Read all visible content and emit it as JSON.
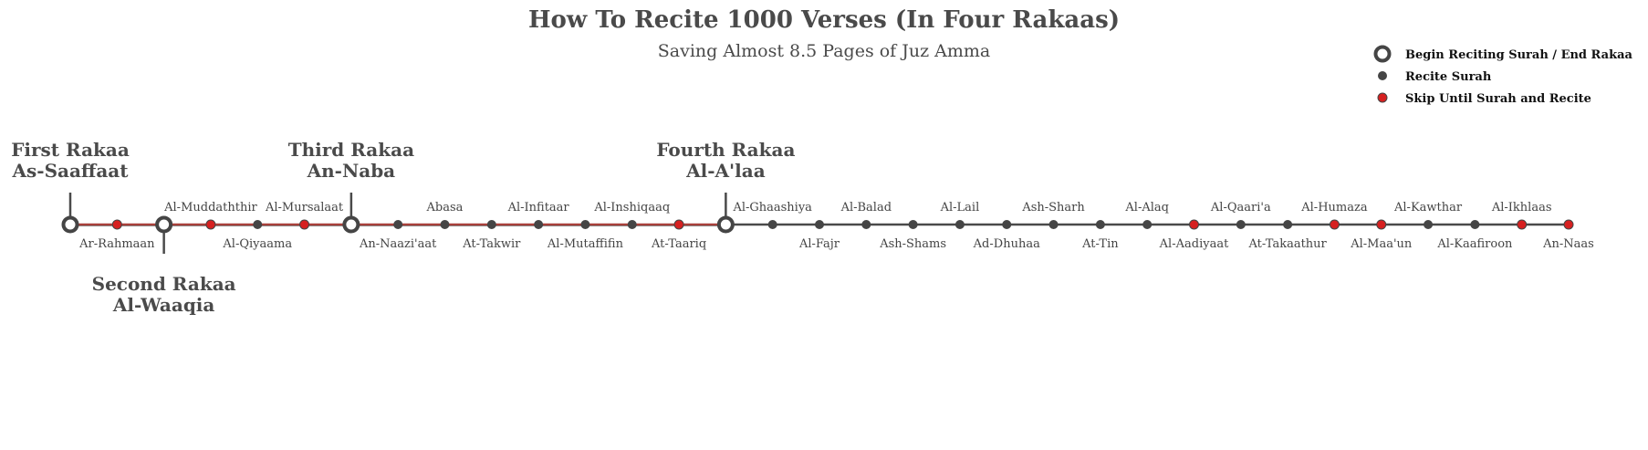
{
  "header": {
    "title": "How To Recite 1000 Verses (In Four Rakaas)",
    "subtitle": "Saving Almost 8.5 Pages of Juz Amma"
  },
  "legend": {
    "items": [
      {
        "type": "begin",
        "label": "Begin Reciting Surah / End Rakaa"
      },
      {
        "type": "recite",
        "label": "Recite Surah"
      },
      {
        "type": "skip",
        "label": "Skip Until Surah and Recite"
      }
    ]
  },
  "colors": {
    "dark": "#454545",
    "red": "#d62020",
    "line_red": "#a8403a",
    "line_gray": "#4a4a4a"
  },
  "rakaas": [
    {
      "index": 0,
      "line1": "First Rakaa",
      "line2": "As-Saaffaat",
      "side": "top"
    },
    {
      "index": 2,
      "line1": "Second Rakaa",
      "line2": "Al-Waaqia",
      "side": "bottom"
    },
    {
      "index": 6,
      "line1": "Third Rakaa",
      "line2": "An-Naba",
      "side": "top"
    },
    {
      "index": 14,
      "line1": "Fourth Rakaa",
      "line2": "Al-A'laa",
      "side": "top"
    }
  ],
  "surahs": [
    {
      "name": "",
      "type": "begin"
    },
    {
      "name": "Ar-Rahmaan",
      "type": "skip",
      "pos": "below"
    },
    {
      "name": "",
      "type": "begin"
    },
    {
      "name": "Al-Muddaththir",
      "type": "skip",
      "pos": "above"
    },
    {
      "name": "Al-Qiyaama",
      "type": "recite",
      "pos": "below"
    },
    {
      "name": "Al-Mursalaat",
      "type": "skip",
      "pos": "above"
    },
    {
      "name": "",
      "type": "begin"
    },
    {
      "name": "An-Naazi'aat",
      "type": "recite",
      "pos": "below"
    },
    {
      "name": "Abasa",
      "type": "recite",
      "pos": "above"
    },
    {
      "name": "At-Takwir",
      "type": "recite",
      "pos": "below"
    },
    {
      "name": "Al-Infitaar",
      "type": "recite",
      "pos": "above"
    },
    {
      "name": "Al-Mutaffifin",
      "type": "recite",
      "pos": "below"
    },
    {
      "name": "Al-Inshiqaaq",
      "type": "recite",
      "pos": "above"
    },
    {
      "name": "At-Taariq",
      "type": "skip",
      "pos": "below"
    },
    {
      "name": "",
      "type": "begin"
    },
    {
      "name": "Al-Ghaashiya",
      "type": "recite",
      "pos": "above"
    },
    {
      "name": "Al-Fajr",
      "type": "recite",
      "pos": "below"
    },
    {
      "name": "Al-Balad",
      "type": "recite",
      "pos": "above"
    },
    {
      "name": "Ash-Shams",
      "type": "recite",
      "pos": "below"
    },
    {
      "name": "Al-Lail",
      "type": "recite",
      "pos": "above"
    },
    {
      "name": "Ad-Dhuhaa",
      "type": "recite",
      "pos": "below"
    },
    {
      "name": "Ash-Sharh",
      "type": "recite",
      "pos": "above"
    },
    {
      "name": "At-Tin",
      "type": "recite",
      "pos": "below"
    },
    {
      "name": "Al-Alaq",
      "type": "recite",
      "pos": "above"
    },
    {
      "name": "Al-Aadiyaat",
      "type": "skip",
      "pos": "below"
    },
    {
      "name": "Al-Qaari'a",
      "type": "recite",
      "pos": "above"
    },
    {
      "name": "At-Takaathur",
      "type": "recite",
      "pos": "below"
    },
    {
      "name": "Al-Humaza",
      "type": "skip",
      "pos": "above"
    },
    {
      "name": "Al-Maa'un",
      "type": "skip",
      "pos": "below"
    },
    {
      "name": "Al-Kawthar",
      "type": "recite",
      "pos": "above"
    },
    {
      "name": "Al-Kaafiroon",
      "type": "recite",
      "pos": "below"
    },
    {
      "name": "Al-Ikhlaas",
      "type": "skip",
      "pos": "above"
    },
    {
      "name": "An-Naas",
      "type": "skip",
      "pos": "below"
    }
  ]
}
